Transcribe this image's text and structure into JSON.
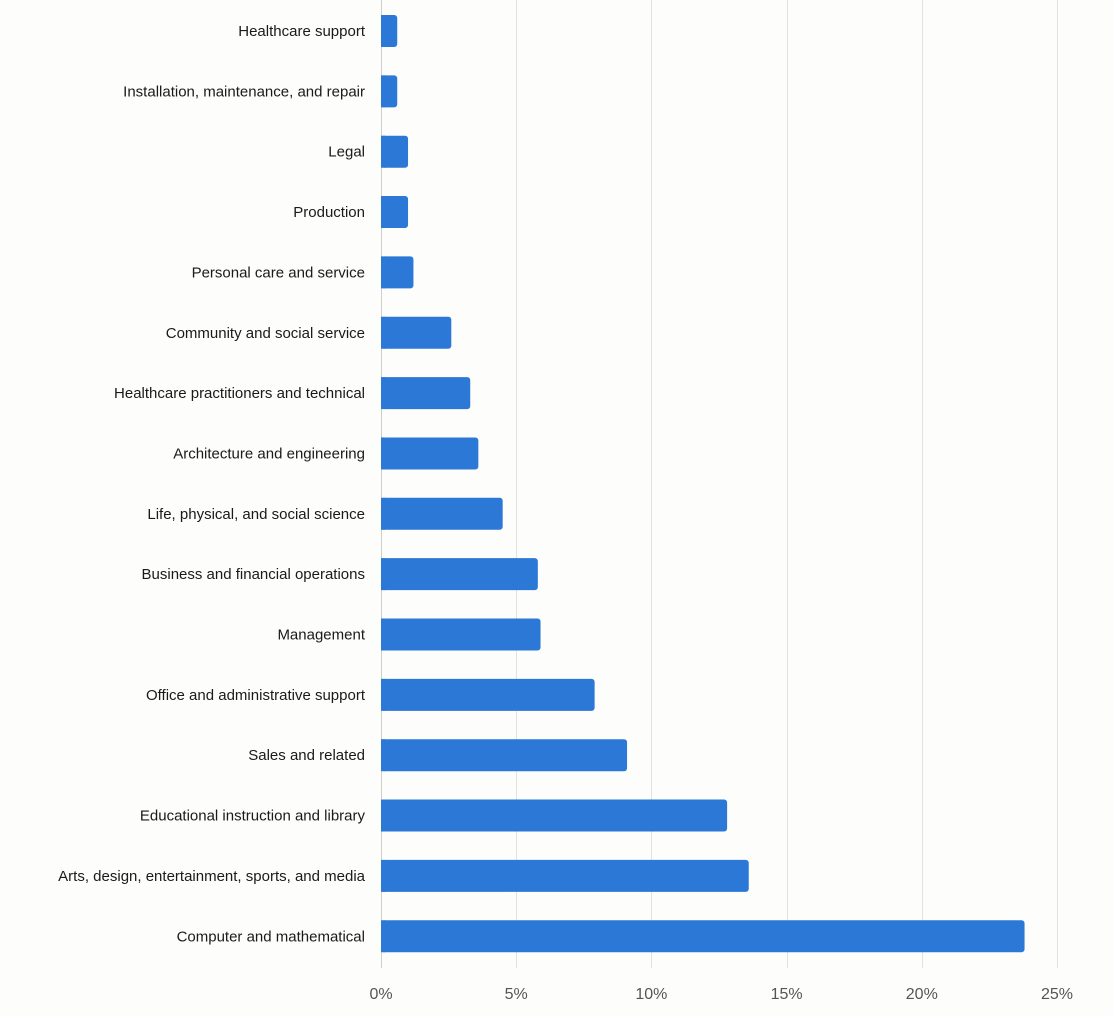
{
  "chart_data": {
    "type": "bar",
    "orientation": "horizontal",
    "title": "",
    "xlabel": "",
    "ylabel": "",
    "xlim": [
      0,
      25
    ],
    "x_ticks": [
      0,
      5,
      10,
      15,
      20,
      25
    ],
    "x_tick_labels": [
      "0%",
      "5%",
      "10%",
      "15%",
      "20%",
      "25%"
    ],
    "grid": true,
    "legend": "none",
    "bar_color": "#2b78d6",
    "categories": [
      "Healthcare support",
      "Installation, maintenance, and repair",
      "Legal",
      "Production",
      "Personal care and service",
      "Community and social service",
      "Healthcare practitioners and technical",
      "Architecture and engineering",
      "Life, physical, and social science",
      "Business and financial operations",
      "Management",
      "Office and administrative support",
      "Sales and related",
      "Educational instruction and library",
      "Arts, design, entertainment, sports, and media",
      "Computer and mathematical"
    ],
    "values": [
      0.6,
      0.6,
      1.0,
      1.0,
      1.2,
      2.6,
      3.3,
      3.6,
      4.5,
      5.8,
      5.9,
      7.9,
      9.1,
      12.8,
      13.6,
      23.8
    ]
  }
}
